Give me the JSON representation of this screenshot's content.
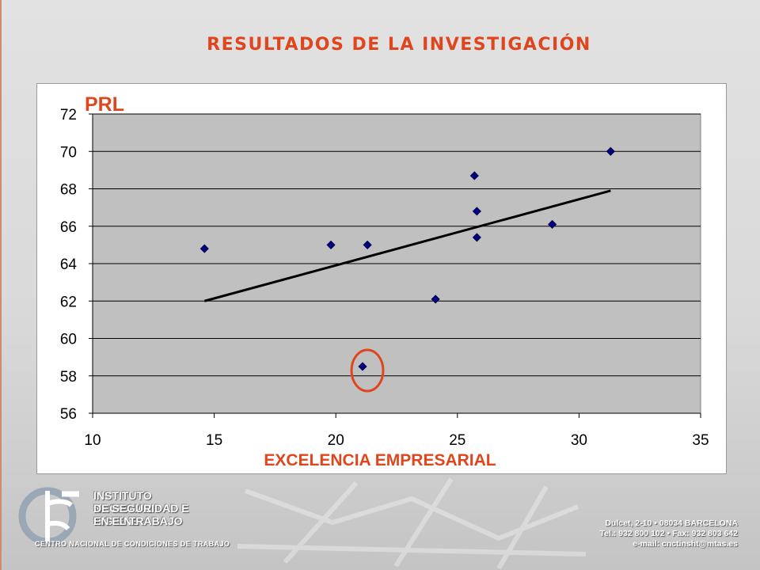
{
  "slide": {
    "title": "RESULTADOS DE LA INVESTIGACIÓN"
  },
  "colors": {
    "accent": "#e0461e",
    "marker": "#000080",
    "plot_bg": "#c0c0c0",
    "trend": "#000000"
  },
  "chart_data": {
    "type": "scatter",
    "title": "",
    "xlabel": "EXCELENCIA EMPRESARIAL",
    "ylabel": "PRL",
    "xlim": [
      10,
      35
    ],
    "ylim": [
      56,
      72
    ],
    "xticks": [
      10,
      15,
      20,
      25,
      30,
      35
    ],
    "yticks": [
      56,
      58,
      60,
      62,
      64,
      66,
      68,
      70,
      72
    ],
    "grid": "horizontal",
    "series": [
      {
        "marker": "diamond",
        "points": [
          {
            "x": 14.6,
            "y": 64.8
          },
          {
            "x": 19.8,
            "y": 65.0
          },
          {
            "x": 21.3,
            "y": 65.0
          },
          {
            "x": 21.1,
            "y": 58.5
          },
          {
            "x": 24.1,
            "y": 62.1
          },
          {
            "x": 25.7,
            "y": 68.7
          },
          {
            "x": 25.8,
            "y": 66.8
          },
          {
            "x": 25.8,
            "y": 65.4
          },
          {
            "x": 28.9,
            "y": 66.1
          },
          {
            "x": 31.3,
            "y": 70.0
          }
        ]
      }
    ],
    "trendline": {
      "x": [
        14.6,
        31.3
      ],
      "y": [
        62.0,
        67.9
      ]
    },
    "highlight": {
      "x": 21.1,
      "y": 58.5,
      "shape": "circle"
    }
  },
  "footer": {
    "logo_lines": [
      "INSTITUTO NACIONAL",
      "DE SEGURIDAD E HIGIENE",
      "EN EL TRABAJO"
    ],
    "logo_subtitle": "CENTRO NACIONAL DE CONDICIONES DE TRABAJO",
    "address_lines": [
      "Dulcet, 2-10 • 08034 BARCELONA",
      "Tel.: 932 800 102 • Fax: 932 803 642",
      "e-mail: cnctinsht@mtas.es"
    ]
  }
}
